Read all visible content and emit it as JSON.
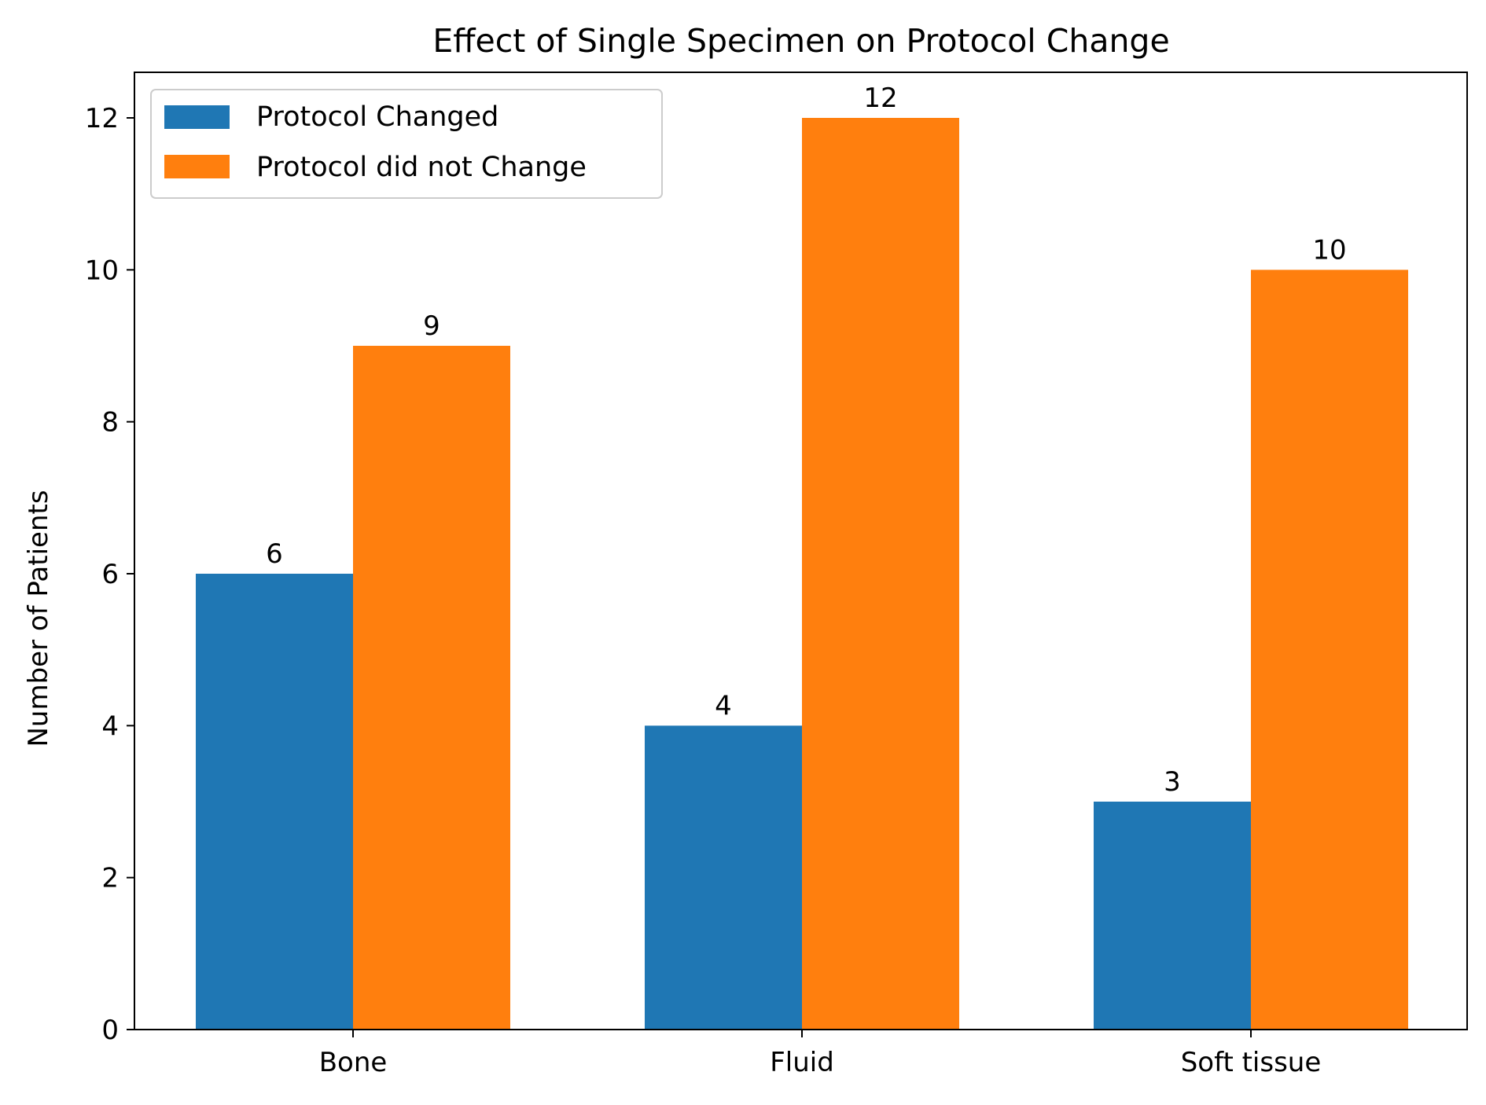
{
  "chart_data": {
    "type": "bar",
    "title": "Effect of Single Specimen on Protocol Change",
    "xlabel": "",
    "ylabel": "Number of Patients",
    "categories": [
      "Bone",
      "Fluid",
      "Soft tissue"
    ],
    "series": [
      {
        "name": "Protocol Changed",
        "values": [
          6,
          4,
          3
        ],
        "color": "#1f77b4"
      },
      {
        "name": "Protocol did not Change",
        "values": [
          9,
          12,
          10
        ],
        "color": "#ff7f0e"
      }
    ],
    "ylim": [
      0,
      12.6
    ],
    "yticks": [
      0,
      2,
      4,
      6,
      8,
      10,
      12
    ],
    "grid": false,
    "legend_position": "upper-left",
    "data_labels": true
  }
}
